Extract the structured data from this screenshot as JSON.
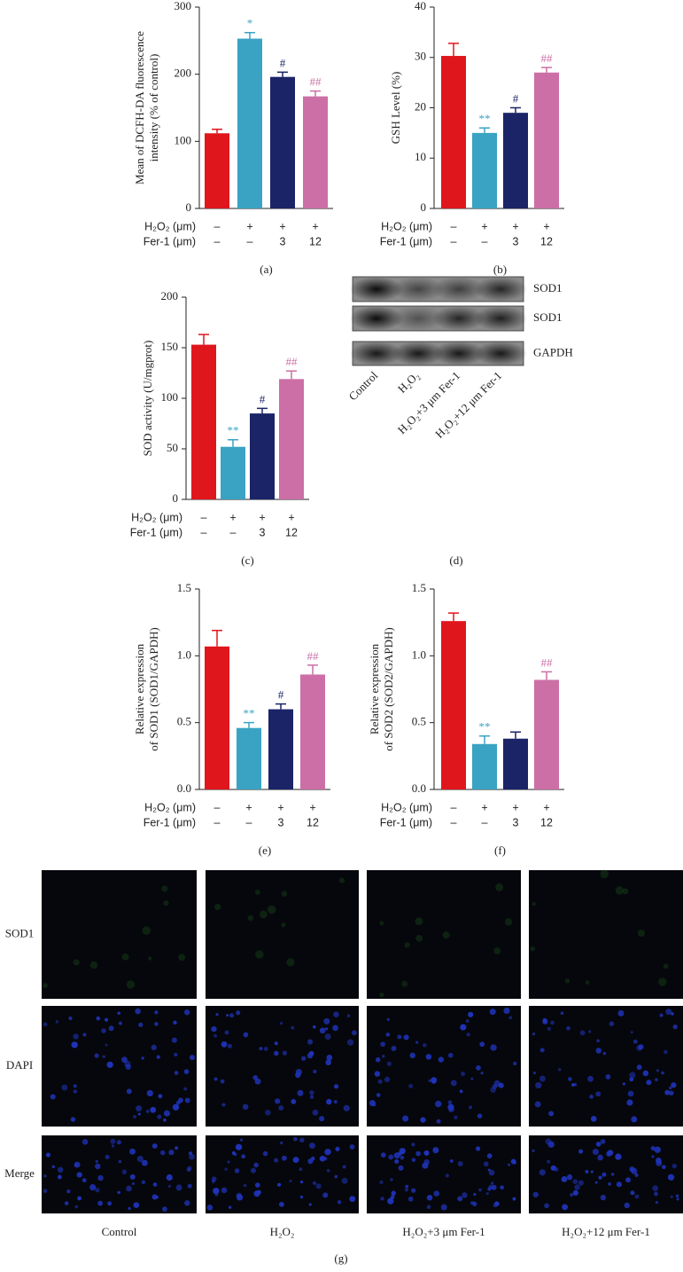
{
  "chart_data": [
    {
      "type": "bar",
      "label": "(a)",
      "ylabel": [
        "Mean of DCFH-DA fluorescence",
        "intensity (% of control)"
      ],
      "ylim": [
        0,
        300
      ],
      "yticks": [
        0,
        100,
        200,
        300
      ],
      "values": [
        112,
        253,
        196,
        167
      ],
      "errors": [
        6,
        9,
        7,
        8
      ],
      "significance": [
        null,
        "*",
        "#",
        "##"
      ],
      "colors": [
        "#e0161d",
        "#3aa3c3",
        "#1b2466",
        "#cc6fa6"
      ],
      "conditions": [
        {
          "label": "H₂O₂ (μm)",
          "levels": [
            "–",
            "+",
            "+",
            "+"
          ]
        },
        {
          "label": "Fer-1 (μm)",
          "levels": [
            "–",
            "–",
            "3",
            "12"
          ]
        }
      ]
    },
    {
      "type": "bar",
      "label": "(b)",
      "ylabel": [
        "GSH Level (%)"
      ],
      "ylim": [
        0,
        40
      ],
      "yticks": [
        0,
        10,
        20,
        30,
        40
      ],
      "values": [
        30.3,
        15,
        19,
        27
      ],
      "errors": [
        2.5,
        1,
        1,
        1
      ],
      "significance": [
        null,
        "**",
        "#",
        "##"
      ],
      "colors": [
        "#e0161d",
        "#3aa3c3",
        "#1b2466",
        "#cc6fa6"
      ],
      "conditions": [
        {
          "label": "H₂O₂ (μm)",
          "levels": [
            "–",
            "+",
            "+",
            "+"
          ]
        },
        {
          "label": "Fer-1 (μm)",
          "levels": [
            "–",
            "–",
            "3",
            "12"
          ]
        }
      ]
    },
    {
      "type": "bar",
      "label": "(c)",
      "ylabel": [
        "SOD activity (U/mgprot)"
      ],
      "ylim": [
        0,
        200
      ],
      "yticks": [
        0,
        50,
        100,
        150,
        200
      ],
      "values": [
        153,
        52,
        85,
        119
      ],
      "errors": [
        10,
        7,
        5,
        8
      ],
      "significance": [
        null,
        "**",
        "#",
        "##"
      ],
      "colors": [
        "#e0161d",
        "#3aa3c3",
        "#1b2466",
        "#cc6fa6"
      ],
      "conditions": [
        {
          "label": "H₂O₂ (μm)",
          "levels": [
            "–",
            "+",
            "+",
            "+"
          ]
        },
        {
          "label": "Fer-1 (μm)",
          "levels": [
            "–",
            "–",
            "3",
            "12"
          ]
        }
      ]
    },
    {
      "type": "bar",
      "label": "(e)",
      "ylabel": [
        "Relative expression",
        "of SOD1 (SOD1/GAPDH)"
      ],
      "ylim": [
        0,
        1.5
      ],
      "yticks": [
        {
          "value": 0,
          "label": "0.0"
        },
        0.5,
        {
          "value": 1,
          "label": "1.0"
        },
        1.5
      ],
      "values": [
        1.07,
        0.46,
        0.6,
        0.86
      ],
      "errors": [
        0.12,
        0.04,
        0.04,
        0.07
      ],
      "significance": [
        null,
        "**",
        "#",
        "##"
      ],
      "colors": [
        "#e0161d",
        "#3aa3c3",
        "#1b2466",
        "#cc6fa6"
      ],
      "conditions": [
        {
          "label": "H₂O₂ (μm)",
          "levels": [
            "–",
            "+",
            "+",
            "+"
          ]
        },
        {
          "label": "Fer-1 (μm)",
          "levels": [
            "–",
            "–",
            "3",
            "12"
          ]
        }
      ]
    },
    {
      "type": "bar",
      "label": "(f)",
      "ylabel": [
        "Relative expression",
        "of SOD2 (SOD2/GAPDH)"
      ],
      "ylim": [
        0,
        1.5
      ],
      "yticks": [
        {
          "value": 0,
          "label": "0.0"
        },
        0.5,
        {
          "value": 1,
          "label": "1.0"
        },
        1.5
      ],
      "values": [
        1.26,
        0.34,
        0.38,
        0.82
      ],
      "errors": [
        0.06,
        0.06,
        0.05,
        0.06
      ],
      "significance": [
        null,
        "**",
        null,
        "##"
      ],
      "colors": [
        "#e0161d",
        "#3aa3c3",
        "#1b2466",
        "#cc6fa6"
      ],
      "conditions": [
        {
          "label": "H₂O₂ (μm)",
          "levels": [
            "–",
            "+",
            "+",
            "+"
          ]
        },
        {
          "label": "Fer-1 (μm)",
          "levels": [
            "–",
            "–",
            "3",
            "12"
          ]
        }
      ]
    }
  ],
  "blot": {
    "label": "(d)",
    "bands": [
      "SOD1",
      "SOD1",
      "GAPDH"
    ],
    "lanes": [
      "Control",
      "H₂O₂",
      "H₂O₂+3 μm Fer-1",
      "H₂O₂+12 μm Fer-1"
    ]
  },
  "micrographs": {
    "label": "(g)",
    "rows": [
      "SOD1",
      "DAPI",
      "Merge"
    ],
    "columns": [
      "Control",
      "H₂O₂",
      "H₂O₂+3 μm Fer-1",
      "H₂O₂+12 μm Fer-1"
    ]
  }
}
